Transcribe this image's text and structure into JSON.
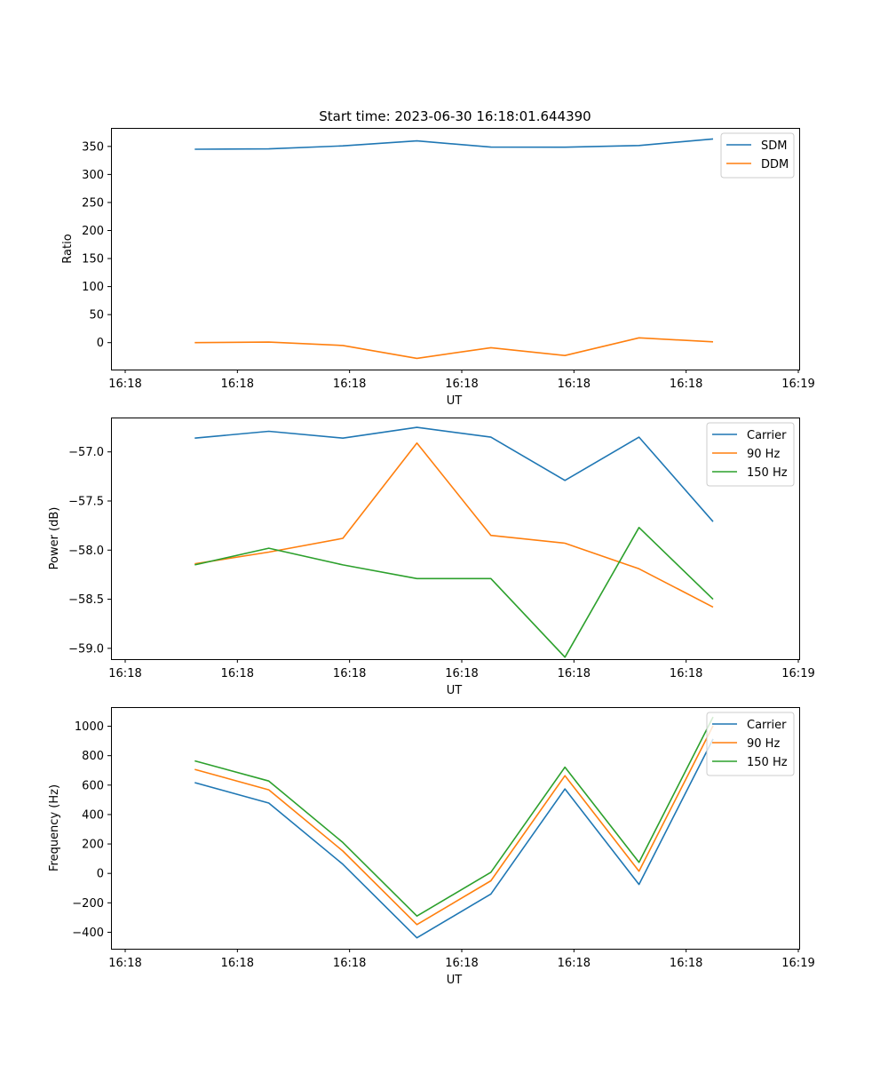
{
  "chart_data": [
    {
      "type": "line",
      "title": "Start time: 2023-06-30 16:18:01.644390",
      "xlabel": "UT",
      "ylabel": "Ratio",
      "x": [
        0.62,
        1.28,
        1.94,
        2.6,
        3.26,
        3.92,
        4.58,
        5.24
      ],
      "xlim": [
        0,
        6
      ],
      "xticks": [
        0,
        1,
        2,
        3,
        4,
        5,
        6
      ],
      "xtick_labels": [
        "16:18",
        "16:18",
        "16:18",
        "16:18",
        "16:18",
        "16:18",
        "16:19"
      ],
      "ylim": [
        -48,
        383
      ],
      "yticks": [
        0,
        50,
        100,
        150,
        200,
        250,
        300,
        350
      ],
      "ytick_labels": [
        "0",
        "50",
        "100",
        "150",
        "200",
        "250",
        "300",
        "350"
      ],
      "legend": "top-right",
      "series": [
        {
          "name": "SDM",
          "color": "#1f77b4",
          "values": [
            345.0,
            345.6,
            351.0,
            359.8,
            348.8,
            348.6,
            351.6,
            363.4
          ]
        },
        {
          "name": "DDM",
          "color": "#ff7f0e",
          "values": [
            0.0,
            1.0,
            -5.0,
            -28.0,
            -9.0,
            -23.0,
            8.5,
            1.5
          ]
        }
      ]
    },
    {
      "type": "line",
      "xlabel": "UT",
      "ylabel": "Power (dB)",
      "x": [
        0.62,
        1.28,
        1.94,
        2.6,
        3.26,
        3.92,
        4.58,
        5.24
      ],
      "xlim": [
        0,
        6
      ],
      "xticks": [
        0,
        1,
        2,
        3,
        4,
        5,
        6
      ],
      "xtick_labels": [
        "16:18",
        "16:18",
        "16:18",
        "16:18",
        "16:18",
        "16:18",
        "16:19"
      ],
      "ylim": [
        -59.11,
        -56.65
      ],
      "yticks": [
        -59.0,
        -58.5,
        -58.0,
        -57.5,
        -57.0
      ],
      "ytick_labels": [
        "−59.0",
        "−58.5",
        "−58.0",
        "−57.5",
        "−57.0"
      ],
      "legend": "top-right",
      "series": [
        {
          "name": "Carrier",
          "color": "#1f77b4",
          "values": [
            -56.86,
            -56.79,
            -56.86,
            -56.75,
            -56.85,
            -57.29,
            -56.85,
            -57.71
          ]
        },
        {
          "name": "90 Hz",
          "color": "#ff7f0e",
          "values": [
            -58.14,
            -58.02,
            -57.88,
            -56.91,
            -57.85,
            -57.93,
            -58.19,
            -58.58
          ]
        },
        {
          "name": "150 Hz",
          "color": "#2ca02c",
          "values": [
            -58.15,
            -57.98,
            -58.15,
            -58.29,
            -58.29,
            -59.09,
            -57.77,
            -58.5
          ]
        }
      ]
    },
    {
      "type": "line",
      "xlabel": "UT",
      "ylabel": "Frequency (Hz)",
      "x": [
        0.62,
        1.28,
        1.94,
        2.6,
        3.26,
        3.92,
        4.58,
        5.24
      ],
      "xlim": [
        0,
        6
      ],
      "xticks": [
        0,
        1,
        2,
        3,
        4,
        5,
        6
      ],
      "xtick_labels": [
        "16:18",
        "16:18",
        "16:18",
        "16:18",
        "16:18",
        "16:18",
        "16:19"
      ],
      "ylim": [
        -512,
        1130
      ],
      "yticks": [
        -400,
        -200,
        0,
        200,
        400,
        600,
        800,
        1000
      ],
      "ytick_labels": [
        "−400",
        "−200",
        "0",
        "200",
        "400",
        "600",
        "800",
        "1000"
      ],
      "legend": "top-right",
      "series": [
        {
          "name": "Carrier",
          "color": "#1f77b4",
          "values": [
            617,
            478,
            62,
            -438,
            -140,
            574,
            -75,
            913
          ]
        },
        {
          "name": "90 Hz",
          "color": "#ff7f0e",
          "values": [
            707,
            568,
            152,
            -348,
            -50,
            664,
            15,
            1003
          ]
        },
        {
          "name": "150 Hz",
          "color": "#2ca02c",
          "values": [
            765,
            628,
            210,
            -290,
            8,
            722,
            75,
            1063
          ]
        }
      ]
    }
  ]
}
